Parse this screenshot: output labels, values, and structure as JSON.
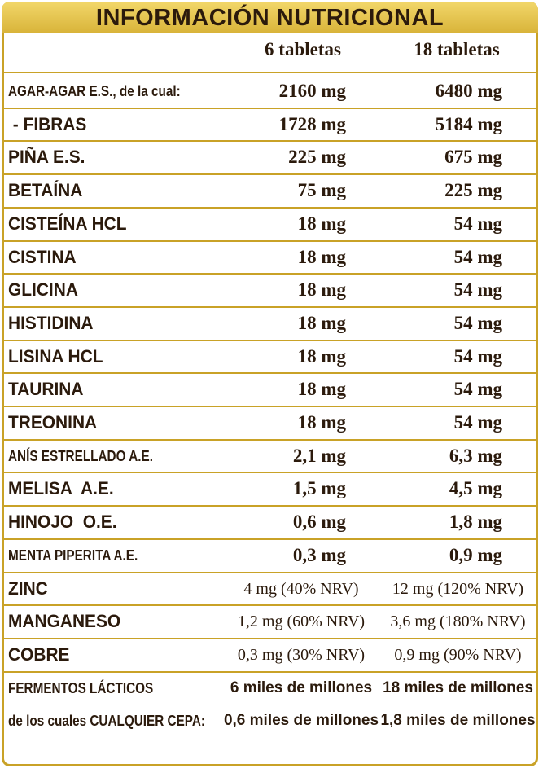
{
  "header": {
    "title": "INFORMACIÓN NUTRICIONAL",
    "columns": [
      "6 tabletas",
      "18 tabletas"
    ]
  },
  "table": {
    "rows": [
      [
        "AGAR-AGAR E.S., de la cual:",
        "2160 mg",
        "6480 mg"
      ],
      [
        " - FIBRAS",
        "1728 mg",
        "5184 mg"
      ],
      [
        "PIÑA E.S.",
        "225 mg",
        "675 mg"
      ],
      [
        "BETAÍNA",
        "75 mg",
        "225 mg"
      ],
      [
        "CISTEÍNA HCL",
        "18 mg",
        "54 mg"
      ],
      [
        "CISTINA",
        "18 mg",
        "54 mg"
      ],
      [
        "GLICINA",
        "18 mg",
        "54 mg"
      ],
      [
        "HISTIDINA",
        "18 mg",
        "54 mg"
      ],
      [
        "LISINA HCL",
        "18 mg",
        "54 mg"
      ],
      [
        "TAURINA",
        "18 mg",
        "54 mg"
      ],
      [
        "TREONINA",
        "18 mg",
        "54 mg"
      ],
      [
        "ANÍS ESTRELLADO A.E.",
        "2,1 mg",
        "6,3 mg"
      ],
      [
        "MELISA  A.E.",
        "1,5 mg",
        "4,5 mg"
      ],
      [
        "HINOJO  O.E.",
        "0,6 mg",
        "1,8 mg"
      ],
      [
        "MENTA PIPERITA A.E.",
        "0,3 mg",
        "0,9 mg"
      ],
      [
        "ZINC",
        "4 mg (40% NRV)",
        "12 mg (120% NRV)"
      ],
      [
        "MANGANESO",
        "1,2 mg (60% NRV)",
        "3,6 mg (180% NRV)"
      ],
      [
        "COBRE",
        "0,3 mg (30% NRV)",
        "0,9 mg (90% NRV)"
      ],
      [
        "FERMENTOS LÁCTICOS",
        "6 miles de millones",
        "18 miles de millones"
      ],
      [
        "de los cuales CUALQUIER CEPA:",
        "0,6 miles de millones",
        "1,8 miles de millones"
      ]
    ]
  }
}
